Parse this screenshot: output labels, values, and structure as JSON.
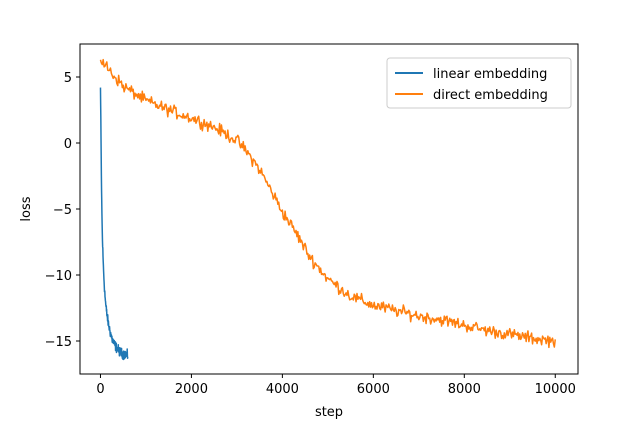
{
  "chart_data": {
    "type": "line",
    "title": "",
    "xlabel": "step",
    "ylabel": "loss",
    "xlim": [
      -450,
      10500
    ],
    "ylim": [
      -17.5,
      7.5
    ],
    "xticks": [
      0,
      2000,
      4000,
      6000,
      8000,
      10000
    ],
    "xtick_labels": [
      "0",
      "2000",
      "4000",
      "6000",
      "8000",
      "10000"
    ],
    "yticks": [
      5,
      0,
      -5,
      -10,
      -15
    ],
    "ytick_labels": [
      "5",
      "0",
      "−5",
      "−10",
      "−15"
    ],
    "grid": false,
    "legend_position": "top-right",
    "series": [
      {
        "name": "linear embedding",
        "color": "#1f77b4",
        "x": [
          0,
          10,
          20,
          30,
          40,
          50,
          60,
          80,
          100,
          120,
          150,
          180,
          220,
          260,
          300,
          350,
          400,
          450,
          500,
          550,
          600
        ],
        "y": [
          4.2,
          1.0,
          -2.5,
          -5.0,
          -6.8,
          -8.0,
          -9.0,
          -10.5,
          -11.6,
          -12.4,
          -13.2,
          -13.8,
          -14.4,
          -14.9,
          -15.2,
          -15.5,
          -15.7,
          -15.9,
          -16.0,
          -16.0,
          -16.1
        ]
      },
      {
        "name": "direct embedding",
        "color": "#ff7f0e",
        "x": [
          0,
          200,
          500,
          1000,
          1500,
          2000,
          2500,
          3000,
          3200,
          3500,
          3800,
          4000,
          4300,
          4600,
          5000,
          5500,
          6000,
          6500,
          7000,
          7500,
          8000,
          8500,
          9000,
          9500,
          10000
        ],
        "y": [
          6.3,
          5.5,
          4.3,
          3.2,
          2.5,
          1.9,
          1.2,
          0.2,
          -0.6,
          -2.0,
          -3.9,
          -5.2,
          -6.8,
          -8.6,
          -10.3,
          -11.6,
          -12.3,
          -12.7,
          -13.1,
          -13.4,
          -13.8,
          -14.2,
          -14.5,
          -14.8,
          -15.0
        ]
      }
    ]
  }
}
